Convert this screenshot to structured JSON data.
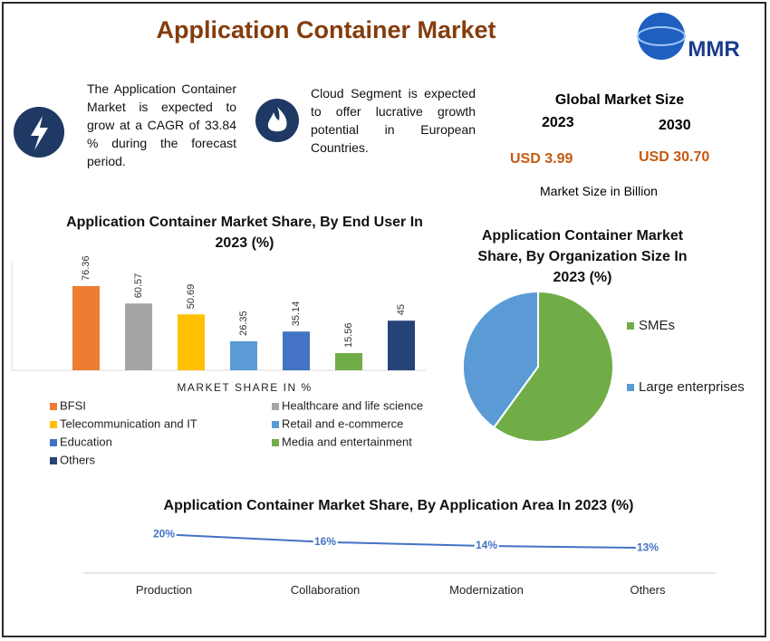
{
  "header": {
    "title": "Application Container Market",
    "logo": "MMR"
  },
  "info": [
    "The Application Container Market is expected to grow at a CAGR of 33.84 % during the forecast period.",
    "Cloud Segment is expected to offer lucrative growth potential in European Countries."
  ],
  "market_size": {
    "title": "Global Market Size",
    "year_start": "2023",
    "year_end": "2030",
    "value_start": "USD 3.99",
    "value_end": "USD 30.70",
    "note": "Market Size in Billion"
  },
  "chart_data": [
    {
      "type": "bar",
      "title": "Application Container Market Share, By End User In 2023 (%)",
      "x_label": "MARKET SHARE IN %",
      "categories": [
        "BFSI",
        "Healthcare and life science",
        "Telecommunication and IT",
        "Retail and e-commerce",
        "Education",
        "Media and entertainment",
        "Others"
      ],
      "values": [
        76.36,
        60.57,
        50.69,
        26.35,
        35.14,
        15.56,
        45
      ],
      "colors": [
        "#ed7d31",
        "#a5a5a5",
        "#ffc000",
        "#5b9bd5",
        "#4472c4",
        "#70ad47",
        "#264478"
      ]
    },
    {
      "type": "pie",
      "title": "Application Container Market Share, By Organization Size In 2023 (%)",
      "categories": [
        "SMEs",
        "Large enterprises"
      ],
      "values": [
        60,
        40
      ],
      "colors": [
        "#70ad47",
        "#5b9bd5"
      ]
    },
    {
      "type": "line",
      "title": "Application Container Market Share, By Application Area In 2023 (%)",
      "categories": [
        "Production",
        "Collaboration",
        "Modernization",
        "Others"
      ],
      "values": [
        20,
        16,
        14,
        13
      ],
      "value_labels": [
        "20%",
        "16%",
        "14%",
        "13%"
      ],
      "color": "#4472c4"
    }
  ]
}
